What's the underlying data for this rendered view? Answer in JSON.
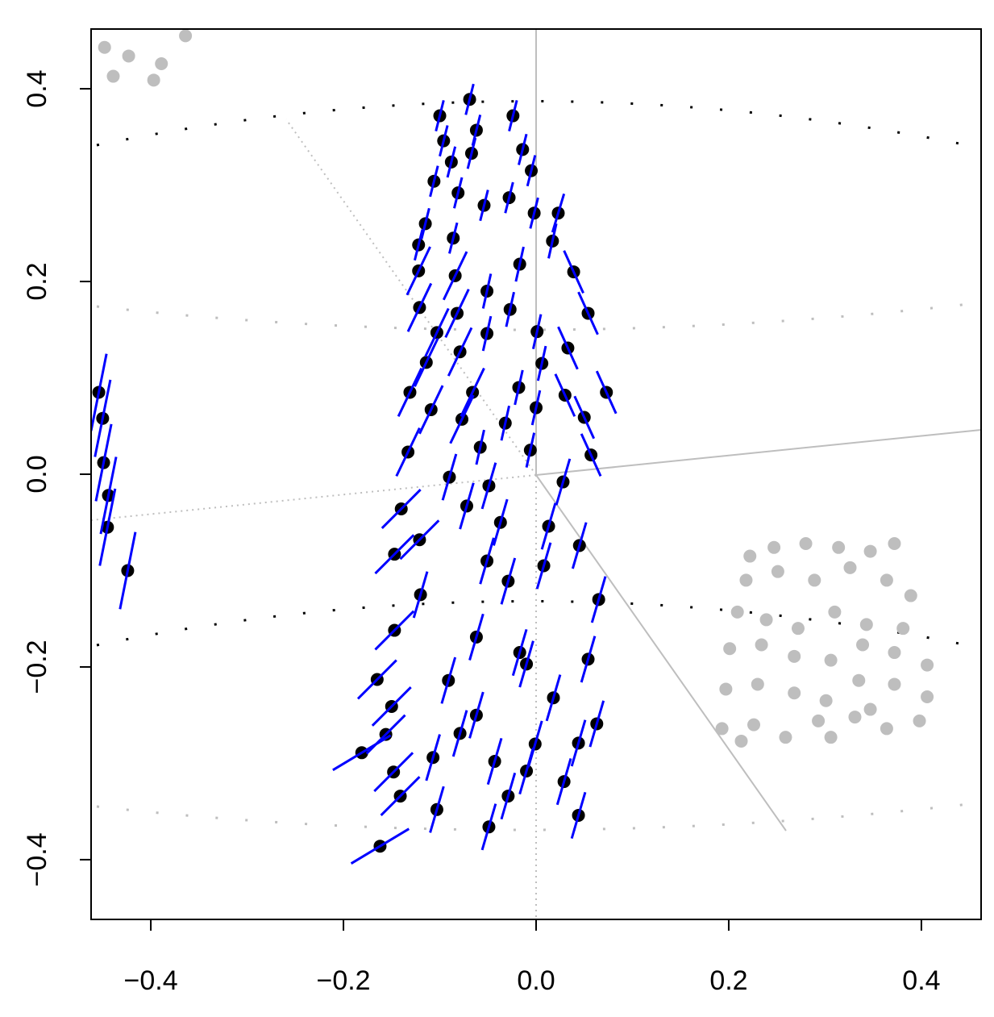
{
  "chart_data": {
    "type": "scatter",
    "xlim": [
      -0.462,
      0.462
    ],
    "ylim": [
      -0.462,
      0.462
    ],
    "xticks": [
      {
        "value": -0.4,
        "label": "−0.4"
      },
      {
        "value": -0.2,
        "label": "−0.2"
      },
      {
        "value": 0,
        "label": "0.0"
      },
      0.2,
      0.4
    ],
    "yticks": [
      {
        "value": -0.4,
        "label": "−0.4"
      },
      {
        "value": -0.2,
        "label": "−0.2"
      },
      {
        "value": 0,
        "label": "0.0"
      },
      0.2,
      0.4
    ],
    "series": [
      {
        "color": "#000000",
        "segment_color": "#0000ff",
        "x": [
          -0.069,
          -0.1,
          -0.024,
          -0.062,
          -0.096,
          -0.067,
          -0.014,
          -0.088,
          -0.005,
          -0.106,
          -0.081,
          -0.028,
          -0.054,
          -0.002,
          0.023,
          -0.115,
          -0.086,
          -0.122,
          -0.017,
          0.017,
          -0.122,
          -0.084,
          0.039,
          -0.051,
          -0.121,
          -0.082,
          -0.027,
          0.054,
          -0.103,
          -0.051,
          0.001,
          0.033,
          -0.079,
          -0.114,
          0.006,
          -0.131,
          -0.066,
          -0.018,
          0.03,
          0.073,
          -0.109,
          -0.077,
          0.0,
          -0.032,
          0.05,
          -0.133,
          -0.058,
          -0.006,
          0.057,
          -0.09,
          -0.049,
          0.028,
          -0.072,
          -0.14,
          -0.037,
          0.013,
          -0.121,
          -0.051,
          -0.147,
          0.008,
          0.045,
          -0.029,
          -0.12,
          0.065,
          -0.147,
          -0.062,
          -0.017,
          -0.165,
          -0.091,
          -0.01,
          0.054,
          -0.15,
          -0.062,
          0.018,
          0.063,
          -0.156,
          -0.079,
          -0.001,
          -0.181,
          -0.107,
          -0.043,
          0.044,
          -0.148,
          -0.01,
          0.029,
          -0.141,
          -0.029,
          -0.103,
          -0.162,
          -0.049,
          0.044,
          -0.454,
          -0.45,
          -0.449,
          -0.444,
          -0.445,
          -0.424
        ],
        "y": [
          0.389,
          0.372,
          0.372,
          0.357,
          0.346,
          0.333,
          0.337,
          0.324,
          0.315,
          0.304,
          0.292,
          0.287,
          0.279,
          0.271,
          0.271,
          0.26,
          0.245,
          0.238,
          0.218,
          0.242,
          0.211,
          0.206,
          0.21,
          0.19,
          0.173,
          0.167,
          0.171,
          0.167,
          0.147,
          0.146,
          0.148,
          0.131,
          0.127,
          0.116,
          0.115,
          0.085,
          0.085,
          0.09,
          0.082,
          0.085,
          0.067,
          0.057,
          0.069,
          0.053,
          0.059,
          0.023,
          0.028,
          0.025,
          0.02,
          -0.003,
          -0.012,
          -0.008,
          -0.033,
          -0.036,
          -0.05,
          -0.054,
          -0.068,
          -0.09,
          -0.083,
          -0.095,
          -0.074,
          -0.111,
          -0.125,
          -0.13,
          -0.162,
          -0.169,
          -0.185,
          -0.213,
          -0.214,
          -0.197,
          -0.192,
          -0.241,
          -0.25,
          -0.232,
          -0.259,
          -0.27,
          -0.269,
          -0.28,
          -0.289,
          -0.294,
          -0.298,
          -0.279,
          -0.309,
          -0.308,
          -0.319,
          -0.334,
          -0.334,
          -0.348,
          -0.386,
          -0.366,
          -0.354,
          0.085,
          0.058,
          0.012,
          -0.022,
          -0.055,
          -0.1
        ],
        "u": [
          0.004,
          0.004,
          0.004,
          0.004,
          0.004,
          0.004,
          0.004,
          0.004,
          0.004,
          0.004,
          0.004,
          0.004,
          0.004,
          0.004,
          0.006,
          0.004,
          0.004,
          0.004,
          0.004,
          0.004,
          0.012,
          0.012,
          -0.01,
          0.004,
          0.012,
          0.012,
          0.004,
          -0.01,
          0.012,
          0.004,
          0.004,
          -0.01,
          0.012,
          0.012,
          0.004,
          0.012,
          0.012,
          0.004,
          -0.01,
          -0.01,
          0.012,
          0.012,
          0.004,
          0.004,
          -0.01,
          0.012,
          0.004,
          0.004,
          -0.01,
          0.007,
          0.007,
          0.007,
          0.007,
          0.02,
          0.007,
          0.007,
          0.02,
          0.007,
          0.02,
          0.007,
          0.007,
          0.007,
          0.007,
          0.007,
          0.02,
          0.007,
          0.007,
          0.02,
          0.007,
          0.007,
          0.007,
          0.02,
          0.007,
          0.007,
          0.007,
          0.02,
          0.007,
          0.007,
          0.03,
          0.007,
          0.007,
          0.007,
          0.02,
          0.007,
          0.007,
          0.02,
          0.007,
          0.007,
          0.03,
          0.007,
          0.007,
          0.008,
          0.008,
          0.008,
          0.008,
          0.008,
          0.008
        ],
        "v": [
          0.016,
          0.016,
          0.016,
          0.016,
          0.016,
          0.016,
          0.016,
          0.016,
          0.016,
          0.016,
          0.016,
          0.016,
          0.016,
          0.016,
          0.02,
          0.016,
          0.016,
          0.016,
          0.018,
          0.018,
          0.025,
          0.025,
          0.022,
          0.018,
          0.025,
          0.025,
          0.018,
          0.022,
          0.025,
          0.018,
          0.018,
          0.022,
          0.025,
          0.025,
          0.018,
          0.025,
          0.025,
          0.018,
          0.022,
          0.022,
          0.025,
          0.025,
          0.018,
          0.018,
          0.022,
          0.025,
          0.018,
          0.018,
          0.022,
          0.024,
          0.024,
          0.024,
          0.024,
          0.02,
          0.024,
          0.024,
          0.02,
          0.024,
          0.02,
          0.024,
          0.024,
          0.024,
          0.024,
          0.024,
          0.02,
          0.024,
          0.024,
          0.02,
          0.024,
          0.024,
          0.024,
          0.02,
          0.024,
          0.024,
          0.024,
          0.02,
          0.024,
          0.024,
          0.018,
          0.024,
          0.024,
          0.024,
          0.02,
          0.024,
          0.024,
          0.02,
          0.024,
          0.024,
          0.018,
          0.024,
          0.024,
          0.04,
          0.04,
          0.04,
          0.04,
          0.04,
          0.04
        ]
      },
      {
        "color": "#bebebe",
        "x": [
          0.222,
          0.247,
          0.28,
          0.314,
          0.347,
          0.372,
          0.218,
          0.251,
          0.289,
          0.326,
          0.364,
          0.389,
          0.209,
          0.239,
          0.272,
          0.31,
          0.343,
          0.381,
          0.201,
          0.234,
          0.268,
          0.306,
          0.339,
          0.372,
          0.406,
          0.197,
          0.23,
          0.268,
          0.301,
          0.335,
          0.372,
          0.406,
          0.193,
          0.226,
          0.259,
          0.293,
          0.331,
          0.364,
          0.398,
          0.213,
          0.306,
          0.347,
          -0.448,
          -0.423,
          -0.389,
          -0.364,
          -0.397,
          -0.439
        ],
        "y": [
          -0.085,
          -0.076,
          -0.072,
          -0.076,
          -0.08,
          -0.072,
          -0.11,
          -0.101,
          -0.11,
          -0.097,
          -0.11,
          -0.126,
          -0.143,
          -0.151,
          -0.16,
          -0.143,
          -0.156,
          -0.16,
          -0.181,
          -0.177,
          -0.189,
          -0.193,
          -0.177,
          -0.185,
          -0.198,
          -0.223,
          -0.218,
          -0.227,
          -0.235,
          -0.214,
          -0.218,
          -0.231,
          -0.264,
          -0.26,
          -0.273,
          -0.256,
          -0.252,
          -0.264,
          -0.256,
          -0.277,
          -0.273,
          -0.244,
          0.443,
          0.434,
          0.426,
          0.455,
          0.409,
          0.413
        ]
      }
    ]
  }
}
